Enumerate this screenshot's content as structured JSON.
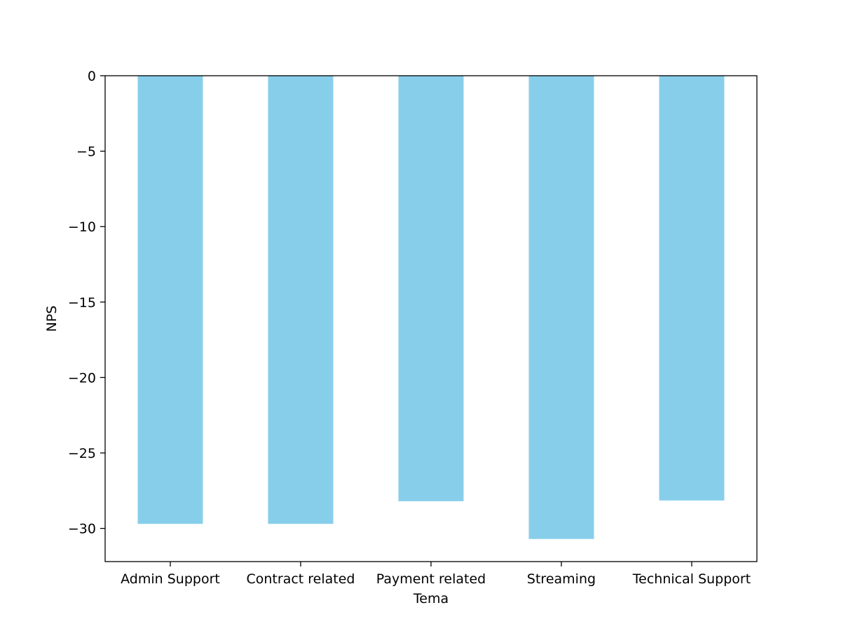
{
  "chart_data": {
    "type": "bar",
    "xlabel": "Tema",
    "ylabel": "NPS",
    "categories": [
      "Admin Support",
      "Contract related",
      "Payment related",
      "Streaming",
      "Technical Support"
    ],
    "values": [
      -29.7,
      -29.7,
      -28.2,
      -30.7,
      -28.15
    ],
    "ylim": [
      -32.2,
      0
    ],
    "yticks": [
      0,
      -5,
      -10,
      -15,
      -20,
      -25,
      -30
    ],
    "bar_color": "#87CEEB",
    "grid": false,
    "legend": "none"
  }
}
